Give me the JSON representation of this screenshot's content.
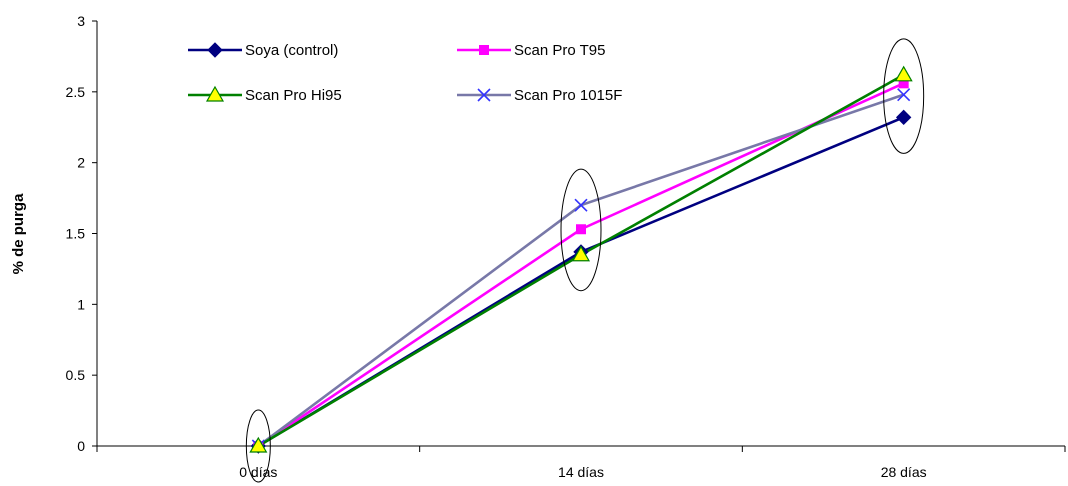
{
  "chart_data": {
    "type": "line",
    "title": "",
    "xlabel": "",
    "ylabel": "% de purga",
    "categories": [
      "0 días",
      "14 días",
      "28 días"
    ],
    "yticks": [
      "0",
      "0.5",
      "1",
      "1.5",
      "2",
      "2.5",
      "3"
    ],
    "ylim": [
      0,
      3
    ],
    "grid": false,
    "legend_position": "top-left inside plot",
    "series": [
      {
        "name": "Soya (control)",
        "values": [
          0,
          1.37,
          2.32
        ],
        "color": "#000080",
        "marker": "diamond"
      },
      {
        "name": "Scan Pro T95",
        "values": [
          0,
          1.53,
          2.56
        ],
        "color": "#FF00FF",
        "marker": "square"
      },
      {
        "name": "Scan Pro Hi95",
        "values": [
          0,
          1.35,
          2.62
        ],
        "color": "#008000",
        "marker": "triangle",
        "marker_fill": "#FFFF00"
      },
      {
        "name": "Scan Pro 1015F",
        "values": [
          0,
          1.7,
          2.48
        ],
        "color": "#7878A8",
        "marker": "x",
        "marker_color": "#3333FF"
      }
    ],
    "annotations": [
      "ellipse around points at 0 días",
      "ellipse around points at 14 días",
      "ellipse around points at 28 días"
    ]
  }
}
